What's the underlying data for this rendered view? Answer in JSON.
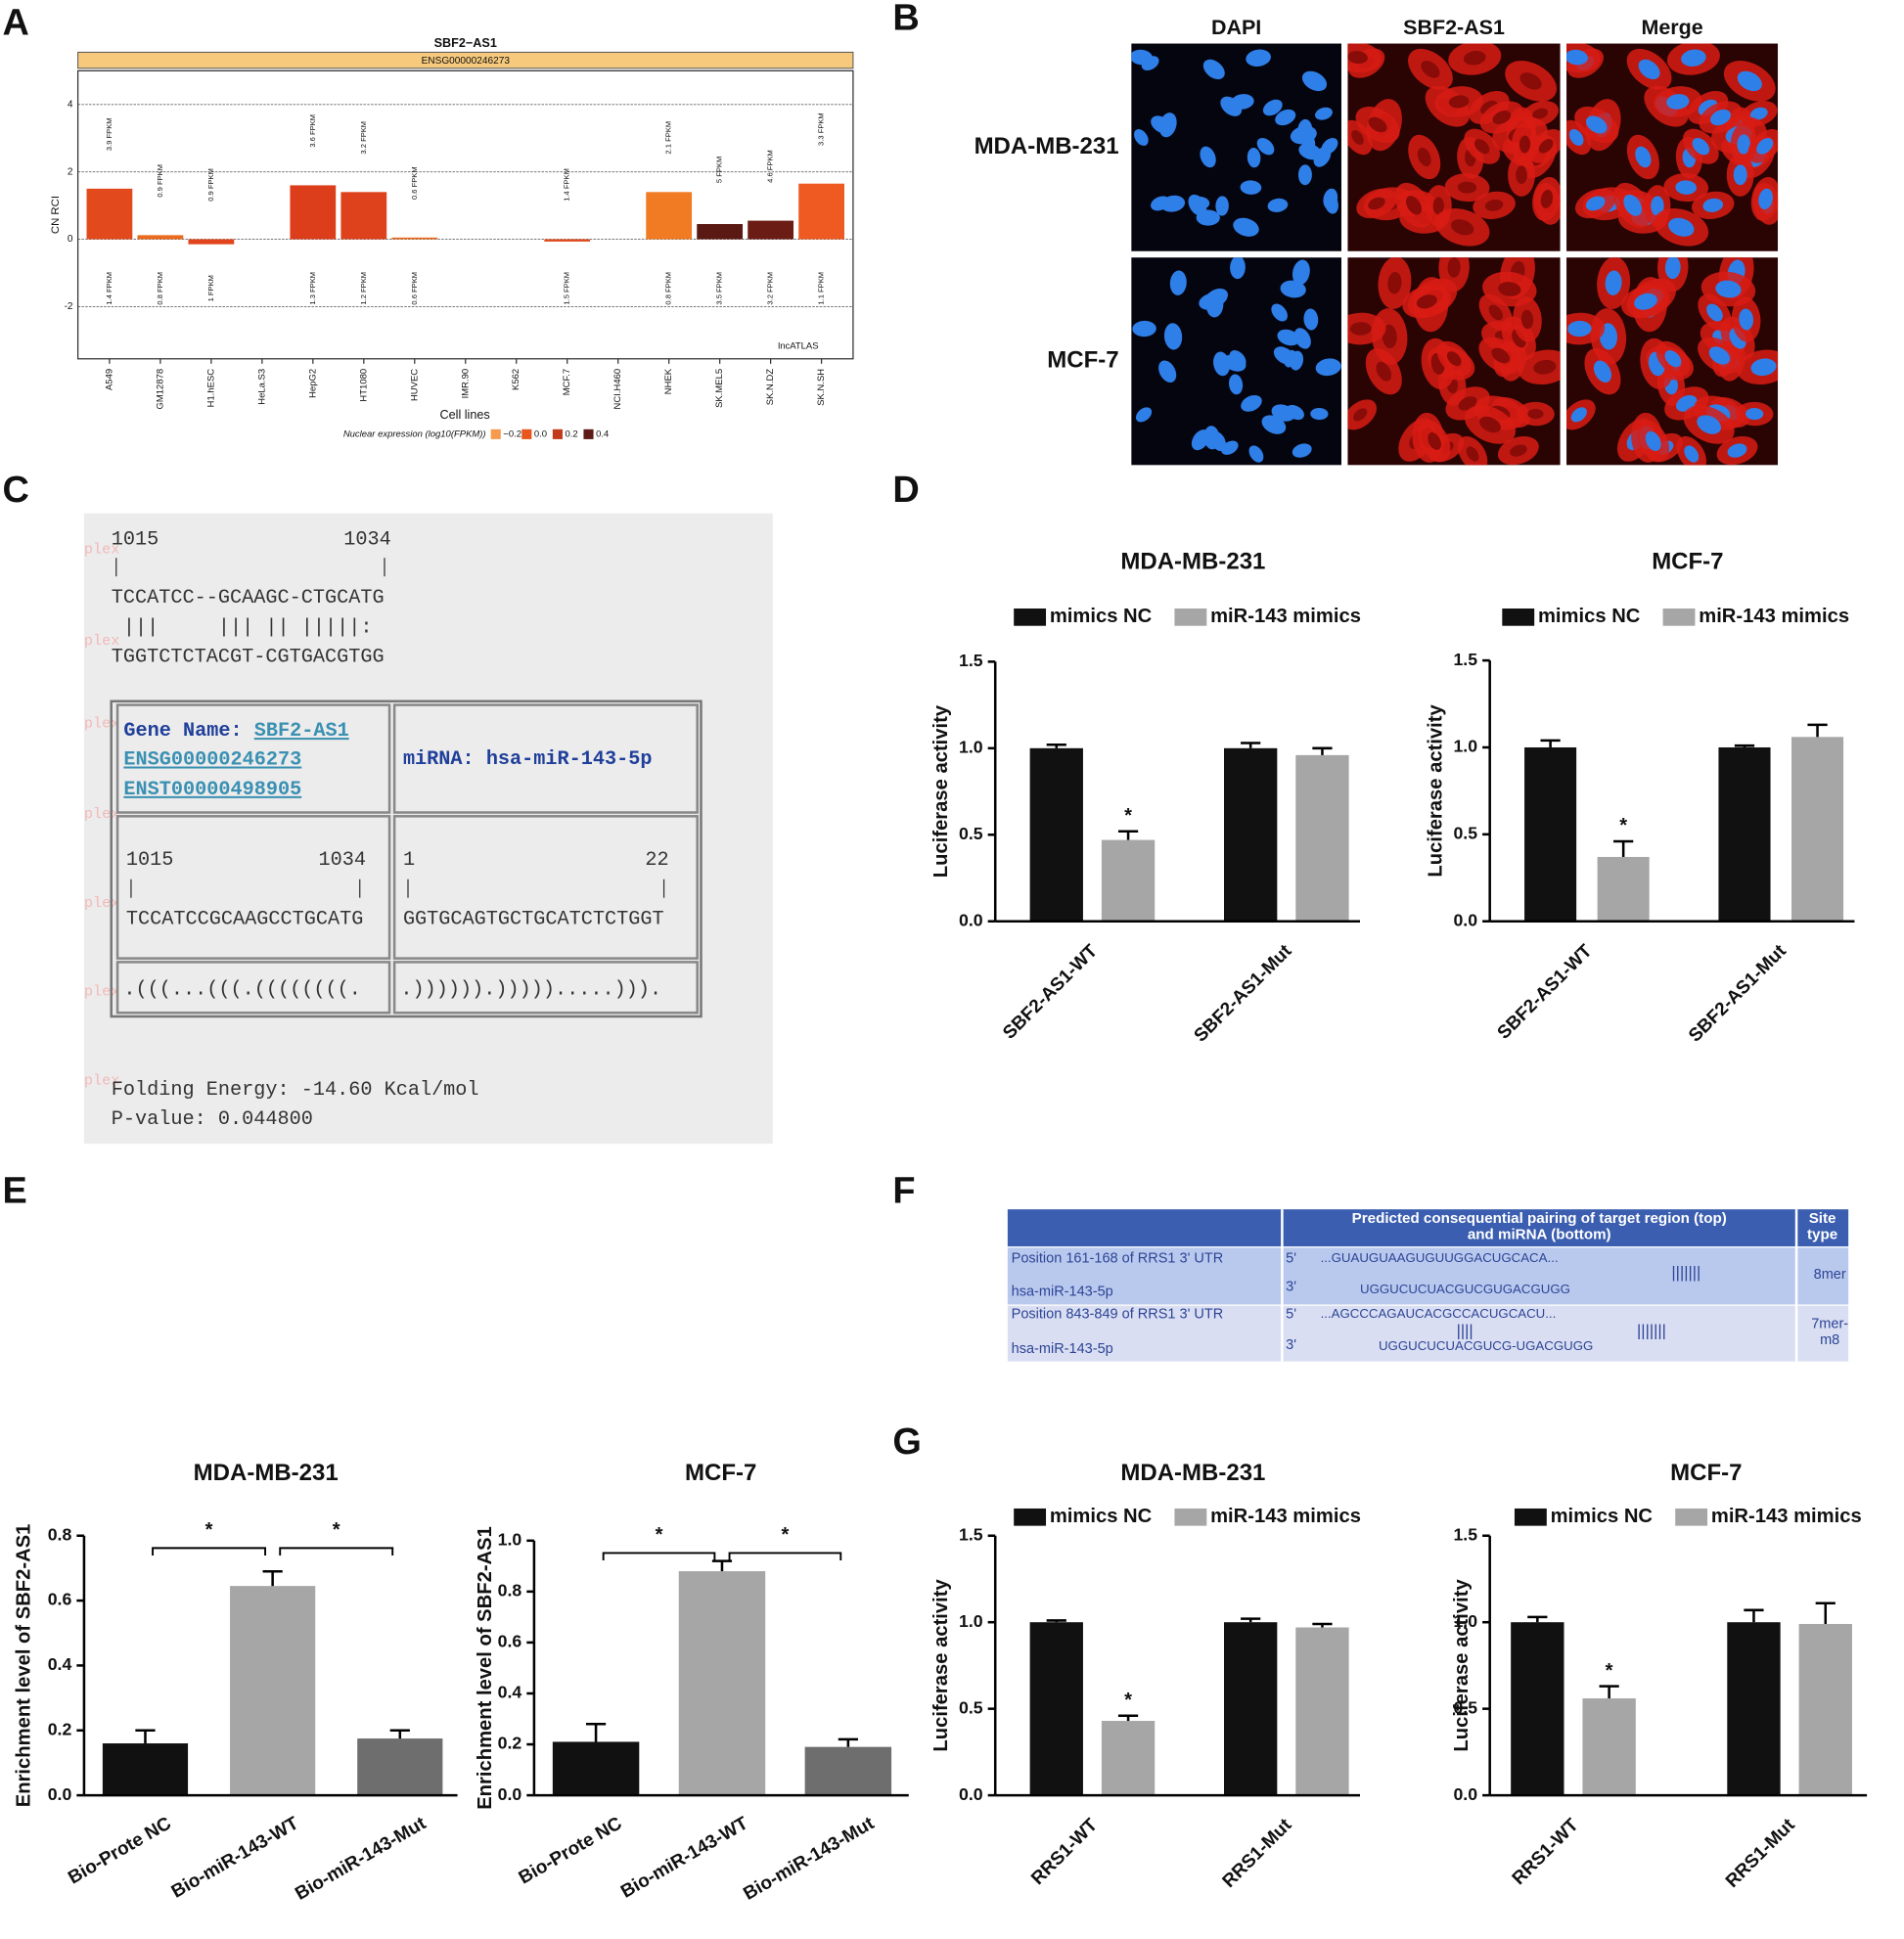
{
  "panel_labels": [
    "A",
    "B",
    "C",
    "D",
    "E",
    "F",
    "G"
  ],
  "panel_b": {
    "columns": [
      "DAPI",
      "SBF2-AS1",
      "Merge"
    ],
    "rows": [
      "MDA-MB-231",
      "MCF-7"
    ]
  },
  "panel_c": {
    "watermark": "plex",
    "top_range": [
      "1015",
      "1034"
    ],
    "target": "TCCATCC--GCAAGC-CTGCATG",
    "pairing": " |||     ||| || |||||:",
    "mirna_aligned": "TGGTCTCTACGT-CGTGACGTGG",
    "gene_label": "Gene Name:",
    "gene": "SBF2-AS1",
    "ids": [
      "ENSG00000246273",
      "ENST00000498905"
    ],
    "mirna_label": "miRNA:",
    "mirna": "hsa-miR-143-5p",
    "target_range": [
      "1015",
      "1034"
    ],
    "target_seq": "TCCATCCGCAAGCCTGCATG",
    "mirna_range": [
      "1",
      "22"
    ],
    "mirna_seq": "GGTGCAGTGCTGCATCTCTGGT",
    "target_structure": ".(((...(((.((((((((.",
    "mirna_structure": ".)))))).))))).....))).",
    "folding_energy": "Folding Energy: -14.60 Kcal/mol",
    "p_value": "P-value: 0.044800"
  },
  "panel_f": {
    "header": [
      "Predicted consequential pairing of target region (top)",
      "and miRNA (bottom)"
    ],
    "site_header": [
      "Site",
      "type"
    ],
    "rows": [
      {
        "target": "Position 161-168 of RRS1 3' UTR",
        "five": "5'",
        "target_seq": "...GUAUGUAAGUGUUGGACUGCACA...",
        "pairs": [
          "|||||||"
        ],
        "mirna": "hsa-miR-143-5p",
        "three": "3'",
        "mirna_seq": "UGGUCUCUACGUCGUGACGUGG",
        "site": [
          "8mer"
        ]
      },
      {
        "target": "Position 843-849 of RRS1 3' UTR",
        "five": "5'",
        "target_seq": "...AGCCCAGAUCACGCCACUGCACU...",
        "pairs": [
          "||||",
          "|||||||"
        ],
        "mirna": "hsa-miR-143-5p",
        "three": "3'",
        "mirna_seq": "UGGUCUCUACGUCG-UGACGUGG",
        "site": [
          "7mer-",
          "m8"
        ]
      }
    ]
  },
  "chart_data": [
    {
      "type": "bar",
      "title": "SBF2−AS1",
      "subtitle": "ENSG00000246273",
      "y_label": "CN RCI",
      "x_label": "Cell lines",
      "source": "lncATLAS",
      "categories": [
        "A549",
        "GM12878",
        "H1.hESC",
        "HeLa.S3",
        "HepG2",
        "HT1080",
        "HUVEC",
        "IMR.90",
        "K562",
        "MCF.7",
        "NCI.H460",
        "NHEK",
        "SK.MEL5",
        "SK.N.DZ",
        "SK.N.SH"
      ],
      "values": [
        1.5,
        0.12,
        -0.15,
        null,
        1.6,
        1.4,
        0.05,
        null,
        null,
        -0.07,
        null,
        1.4,
        0.45,
        0.55,
        1.65
      ],
      "colors": [
        "#e24a1e",
        "#ea6a1f",
        "#e2451d",
        null,
        "#dc3e1c",
        "#de421d",
        "#ec6d20",
        null,
        null,
        "#df4a1e",
        null,
        "#f07b22",
        "#5a1913",
        "#6a1c15",
        "#ee5a22"
      ],
      "top_labels": [
        "3.9 FPKM",
        "0.9 FPKM",
        "0.9 FPKM",
        null,
        "3.6 FPKM",
        "3.2 FPKM",
        "0.6 FPKM",
        null,
        null,
        "1.4 FPKM",
        null,
        "2.1 FPKM",
        "5 FPKM",
        "4.6 FPKM",
        "3.3 FPKM"
      ],
      "bottom_labels": [
        "1.4 FPKM",
        "0.8 FPKM",
        "1 FPKM",
        null,
        "1.3 FPKM",
        "1.2 FPKM",
        "0.6 FPKM",
        null,
        null,
        "1.5 FPKM",
        null,
        "0.8 FPKM",
        "3.5 FPKM",
        "3.2 FPKM",
        "1.1 FPKM"
      ],
      "legend": {
        "title": "Nuclear expression (log10(FPKM))",
        "entries": [
          {
            "label": "−0.2",
            "color": "#f59a4e"
          },
          {
            "label": "0.0",
            "color": "#e8561e"
          },
          {
            "label": "0.2",
            "color": "#c23a1b"
          },
          {
            "label": "0.4",
            "color": "#5e1a14"
          }
        ]
      },
      "ylim": [
        -3.55,
        5
      ],
      "yticks": [
        -2,
        0,
        2,
        4
      ],
      "grid": true
    },
    {
      "type": "bar",
      "title": "MDA-MB-231",
      "y_label": "Luciferase activity",
      "categories": [
        "SBF2-AS1-WT",
        "SBF2-AS1-Mut"
      ],
      "series": [
        {
          "name": "mimics NC",
          "color": "#111111",
          "values": [
            1.0,
            1.0
          ],
          "errors": [
            0.02,
            0.03
          ],
          "annotations": [
            null,
            null
          ]
        },
        {
          "name": "miR-143 mimics",
          "color": "#a6a6a6",
          "values": [
            0.47,
            0.96
          ],
          "errors": [
            0.05,
            0.04
          ],
          "annotations": [
            "*",
            null
          ]
        }
      ],
      "ylim": [
        0,
        1.5
      ],
      "yticks": [
        {
          "value": 0,
          "label": "0.0"
        },
        0.5,
        {
          "value": 1,
          "label": "1.0"
        },
        1.5
      ]
    },
    {
      "type": "bar",
      "title": "MCF-7",
      "y_label": "Luciferase activity",
      "categories": [
        "SBF2-AS1-WT",
        "SBF2-AS1-Mut"
      ],
      "series": [
        {
          "name": "mimics NC",
          "color": "#111111",
          "values": [
            1.0,
            1.0
          ],
          "errors": [
            0.04,
            0.01
          ],
          "annotations": [
            null,
            null
          ]
        },
        {
          "name": "miR-143 mimics",
          "color": "#a6a6a6",
          "values": [
            0.37,
            1.06
          ],
          "errors": [
            0.09,
            0.07
          ],
          "annotations": [
            "*",
            null
          ]
        }
      ],
      "ylim": [
        0,
        1.5
      ],
      "yticks": [
        {
          "value": 0,
          "label": "0.0"
        },
        0.5,
        {
          "value": 1,
          "label": "1.0"
        },
        1.5
      ]
    },
    {
      "type": "bar",
      "title": "MDA-MB-231",
      "y_label": "Enrichment level of SBF2-AS1",
      "categories": [
        "Bio-Prote NC",
        "Bio-miR-143-WT",
        "Bio-miR-143-Mut"
      ],
      "values": [
        0.16,
        0.645,
        0.175
      ],
      "errors": [
        0.04,
        0.045,
        0.025
      ],
      "colors": [
        "#111111",
        "#a6a6a6",
        "#6e6e6e"
      ],
      "comparisons": [
        {
          "from": "Bio-Prote NC",
          "to": "Bio-miR-143-WT",
          "label": "*"
        },
        {
          "from": "Bio-miR-143-WT",
          "to": "Bio-miR-143-Mut",
          "label": "*"
        }
      ],
      "ylim": [
        0,
        0.8
      ],
      "yticks": [
        {
          "value": 0,
          "label": "0.0"
        },
        0.2,
        0.4,
        0.6,
        0.8
      ]
    },
    {
      "type": "bar",
      "title": "MCF-7",
      "y_label": "Enrichment level of SBF2-AS1",
      "categories": [
        "Bio-Prote NC",
        "Bio-miR-143-WT",
        "Bio-miR-143-Mut"
      ],
      "values": [
        0.21,
        0.88,
        0.19
      ],
      "errors": [
        0.07,
        0.04,
        0.03
      ],
      "colors": [
        "#111111",
        "#a6a6a6",
        "#6e6e6e"
      ],
      "comparisons": [
        {
          "from": "Bio-Prote NC",
          "to": "Bio-miR-143-WT",
          "label": "*"
        },
        {
          "from": "Bio-miR-143-WT",
          "to": "Bio-miR-143-Mut",
          "label": "*"
        }
      ],
      "ylim": [
        0,
        1
      ],
      "yticks": [
        {
          "value": 0,
          "label": "0.0"
        },
        0.2,
        0.4,
        0.6,
        0.8,
        {
          "value": 1,
          "label": "1.0"
        }
      ]
    },
    {
      "type": "bar",
      "title": "MDA-MB-231",
      "y_label": "Luciferase activity",
      "categories": [
        "RRS1-WT",
        "RRS1-Mut"
      ],
      "series": [
        {
          "name": "mimics NC",
          "color": "#111111",
          "values": [
            1.0,
            1.0
          ],
          "errors": [
            0.01,
            0.02
          ],
          "annotations": [
            null,
            null
          ]
        },
        {
          "name": "miR-143 mimics",
          "color": "#a6a6a6",
          "values": [
            0.43,
            0.97
          ],
          "errors": [
            0.03,
            0.02
          ],
          "annotations": [
            "*",
            null
          ]
        }
      ],
      "ylim": [
        0,
        1.5
      ],
      "yticks": [
        {
          "value": 0,
          "label": "0.0"
        },
        0.5,
        {
          "value": 1,
          "label": "1.0"
        },
        1.5
      ]
    },
    {
      "type": "bar",
      "title": "MCF-7",
      "y_label": "Luciferase activity",
      "categories": [
        "RRS1-WT",
        "RRS1-Mut"
      ],
      "series": [
        {
          "name": "mimics NC",
          "color": "#111111",
          "values": [
            1.0,
            1.0
          ],
          "errors": [
            0.03,
            0.07
          ],
          "annotations": [
            null,
            null
          ]
        },
        {
          "name": "miR-143 mimics",
          "color": "#a6a6a6",
          "values": [
            0.56,
            0.99
          ],
          "errors": [
            0.07,
            0.12
          ],
          "annotations": [
            "*",
            null
          ]
        }
      ],
      "ylim": [
        0,
        1.5
      ],
      "yticks": [
        {
          "value": 0,
          "label": "0.0"
        },
        0.5,
        {
          "value": 1,
          "label": "1.0"
        },
        1.5
      ]
    }
  ]
}
